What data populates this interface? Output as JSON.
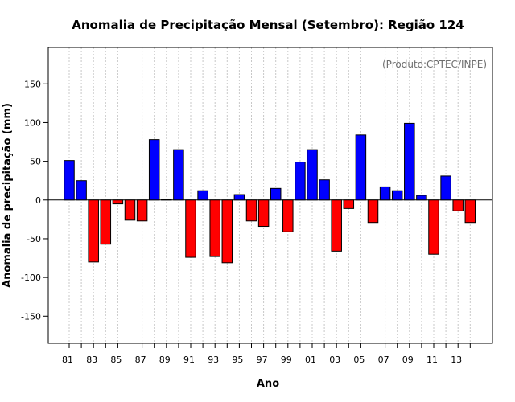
{
  "chart_data": {
    "type": "bar",
    "title": "Anomalia de Precipitação Mensal (Setembro): Região 124",
    "xlabel": "Ano",
    "ylabel": "Anomalia de precipitação (mm)",
    "annotation": "(Produto:CPTEC/INPE)",
    "ylim": [
      -185,
      197
    ],
    "yticks": [
      -150,
      -100,
      -50,
      0,
      50,
      100,
      150
    ],
    "grid": "vertical dotted",
    "categories": [
      "81",
      "82",
      "83",
      "84",
      "85",
      "86",
      "87",
      "88",
      "89",
      "90",
      "91",
      "92",
      "93",
      "94",
      "95",
      "96",
      "97",
      "98",
      "99",
      "00",
      "01",
      "02",
      "03",
      "04",
      "05",
      "06",
      "07",
      "08",
      "09",
      "10",
      "11",
      "12",
      "13",
      "14"
    ],
    "xtick_labels": [
      "81",
      "",
      "83",
      "",
      "85",
      "",
      "87",
      "",
      "89",
      "",
      "91",
      "",
      "93",
      "",
      "95",
      "",
      "97",
      "",
      "99",
      "",
      "01",
      "",
      "03",
      "",
      "05",
      "",
      "07",
      "",
      "09",
      "",
      "11",
      "",
      "13",
      ""
    ],
    "values": [
      51,
      25,
      -80,
      -57,
      -5,
      -26,
      -27,
      78,
      1,
      65,
      -74,
      12,
      -73,
      -81,
      7,
      -27,
      -34,
      15,
      -41,
      49,
      65,
      26,
      -66,
      -11,
      84,
      -29,
      17,
      12,
      99,
      6,
      -70,
      31,
      -14,
      -29
    ],
    "colors": {
      "positive": "#0000ff",
      "negative": "#ff0000",
      "grid": "#c8c8c8"
    }
  }
}
